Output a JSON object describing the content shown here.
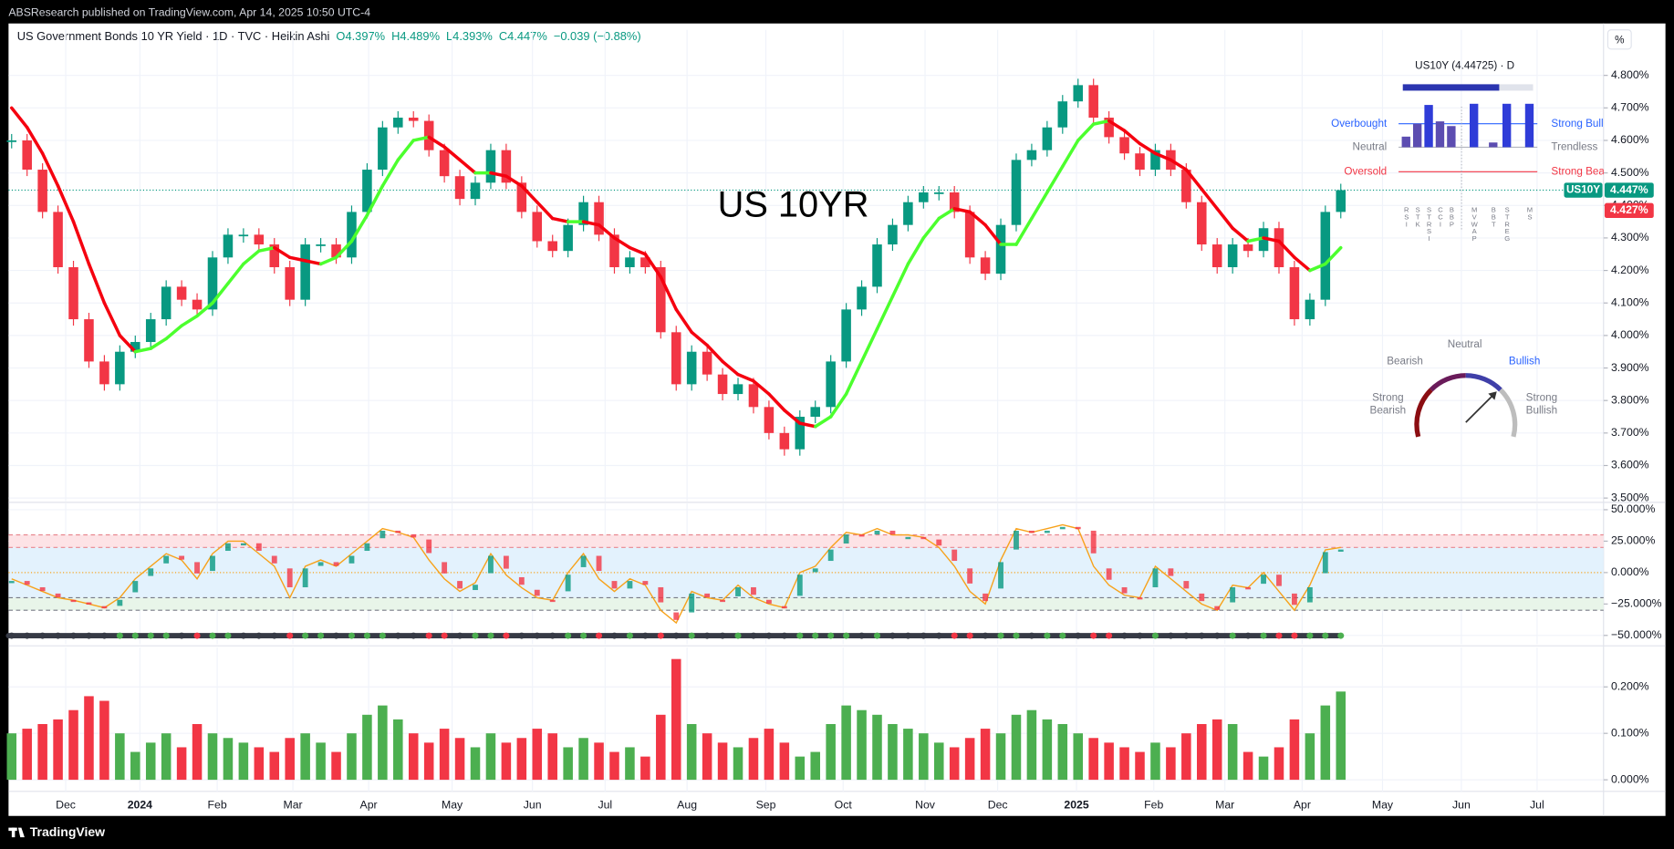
{
  "header": {
    "publisher": "ABSResearch published on TradingView.com, Apr 14, 2025 10:50 UTC-4"
  },
  "legend": {
    "symbol": "US Government Bonds 10 YR Yield · 1D · TVC · Heikin Ashi",
    "open": "O4.397%",
    "high": "H4.489%",
    "low": "L4.393%",
    "close": "C4.447%",
    "change": "−0.039 (−0.88%)",
    "unit": "%"
  },
  "chart_data": [
    {
      "type": "candlestick",
      "annotation": "US 10YR",
      "values": [
        4.6,
        4.51,
        4.38,
        4.21,
        4.05,
        3.92,
        3.85,
        3.95,
        3.98,
        4.05,
        4.15,
        4.11,
        4.08,
        4.24,
        4.31,
        4.31,
        4.28,
        4.21,
        4.11,
        4.28,
        4.28,
        4.24,
        4.38,
        4.51,
        4.64,
        4.67,
        4.66,
        4.57,
        4.49,
        4.42,
        4.47,
        4.57,
        4.47,
        4.38,
        4.29,
        4.26,
        4.34,
        4.41,
        4.31,
        4.21,
        4.24,
        4.21,
        4.01,
        3.85,
        3.95,
        3.88,
        3.82,
        3.85,
        3.78,
        3.7,
        3.65,
        3.75,
        3.78,
        3.92,
        4.08,
        4.15,
        4.28,
        4.34,
        4.41,
        4.44,
        4.44,
        4.38,
        4.24,
        4.19,
        4.34,
        4.54,
        4.57,
        4.64,
        4.72,
        4.77,
        4.67,
        4.61,
        4.56,
        4.51,
        4.57,
        4.51,
        4.41,
        4.28,
        4.21,
        4.28,
        4.26,
        4.33,
        4.21,
        4.05,
        4.11,
        4.38,
        4.447
      ],
      "ma": [
        4.7,
        4.64,
        4.56,
        4.46,
        4.35,
        4.22,
        4.1,
        4.0,
        3.95,
        3.96,
        3.99,
        4.03,
        4.06,
        4.1,
        4.16,
        4.22,
        4.26,
        4.27,
        4.24,
        4.23,
        4.22,
        4.24,
        4.29,
        4.37,
        4.46,
        4.54,
        4.6,
        4.61,
        4.58,
        4.54,
        4.5,
        4.5,
        4.49,
        4.46,
        4.41,
        4.36,
        4.35,
        4.35,
        4.34,
        4.3,
        4.27,
        4.25,
        4.18,
        4.08,
        4.01,
        3.97,
        3.92,
        3.88,
        3.86,
        3.82,
        3.77,
        3.73,
        3.72,
        3.75,
        3.82,
        3.92,
        4.02,
        4.12,
        4.22,
        4.3,
        4.36,
        4.39,
        4.38,
        4.34,
        4.28,
        4.28,
        4.36,
        4.44,
        4.52,
        4.6,
        4.65,
        4.66,
        4.63,
        4.59,
        4.56,
        4.54,
        4.51,
        4.45,
        4.39,
        4.33,
        4.29,
        4.3,
        4.29,
        4.24,
        4.2,
        4.22,
        4.27
      ],
      "up_color": "#089981",
      "down_color": "#f23645",
      "ma_up_color": "#4cff2e",
      "ma_down_color": "#f5000f",
      "xlim": [
        -0.2,
        103.0
      ],
      "ylim": [
        3.49,
        4.94
      ],
      "yticks": [
        {
          "value": 3.5,
          "label": "3.500%"
        },
        {
          "value": 3.6,
          "label": "3.600%"
        },
        {
          "value": 3.7,
          "label": "3.700%"
        },
        {
          "value": 3.8,
          "label": "3.800%"
        },
        {
          "value": 3.9,
          "label": "3.900%"
        },
        {
          "value": 4.0,
          "label": "4.000%"
        },
        {
          "value": 4.1,
          "label": "4.100%"
        },
        {
          "value": 4.2,
          "label": "4.200%"
        },
        {
          "value": 4.3,
          "label": "4.300%"
        },
        {
          "value": 4.4,
          "label": "4.400%"
        },
        {
          "value": 4.5,
          "label": "4.500%"
        },
        {
          "value": 4.6,
          "label": "4.600%"
        },
        {
          "value": 4.7,
          "label": "4.700%"
        },
        {
          "value": 4.8,
          "label": "4.800%"
        }
      ],
      "symbol": "US10Y",
      "tags": [
        {
          "value": 4.447,
          "label": "4.447%",
          "color": "#089981"
        },
        {
          "value": 4.427,
          "label": "4.427%",
          "color": "#f23645"
        }
      ],
      "grid": true
    },
    {
      "type": "line",
      "color": "#f7a21b",
      "values": [
        -5,
        -10,
        -15,
        -20,
        -22,
        -25,
        -28,
        -20,
        -5,
        5,
        15,
        10,
        -5,
        15,
        25,
        25,
        15,
        5,
        -20,
        5,
        10,
        5,
        15,
        25,
        35,
        32,
        28,
        10,
        -5,
        -15,
        -8,
        15,
        -2,
        -12,
        -20,
        -22,
        0,
        15,
        -5,
        -15,
        -5,
        -10,
        -30,
        -40,
        -15,
        -20,
        -22,
        -10,
        -20,
        -25,
        -28,
        0,
        5,
        20,
        32,
        30,
        35,
        30,
        30,
        28,
        20,
        5,
        -15,
        -25,
        10,
        35,
        32,
        35,
        38,
        35,
        5,
        -10,
        -18,
        -20,
        5,
        -5,
        -15,
        -25,
        -30,
        -10,
        -12,
        0,
        -15,
        -30,
        -10,
        18,
        20
      ],
      "levels": [
        30,
        20,
        -20,
        -30
      ],
      "band_colors": [
        "#fde3e6",
        "#e3f2fd",
        "#e8f5e9"
      ],
      "dot_colors": [
        "#4caf50",
        "#f23645",
        "#363a45"
      ],
      "xlim": [
        -0.2,
        103.0
      ],
      "ylim": [
        -57,
        55
      ],
      "yticks": [
        {
          "value": 50,
          "label": "50.000%"
        },
        {
          "value": 25,
          "label": "25.000%"
        },
        {
          "value": 0,
          "label": "0.000%"
        },
        {
          "value": -25,
          "label": "−25.000%"
        },
        {
          "value": -50,
          "label": "−50.000%"
        }
      ],
      "grid": true
    },
    {
      "type": "bar",
      "values": [
        0.1,
        0.11,
        0.12,
        0.13,
        0.15,
        0.18,
        0.17,
        0.1,
        0.06,
        0.08,
        0.1,
        0.07,
        0.12,
        0.1,
        0.09,
        0.08,
        0.07,
        0.06,
        0.09,
        0.1,
        0.08,
        0.06,
        0.1,
        0.14,
        0.16,
        0.13,
        0.1,
        0.08,
        0.11,
        0.09,
        0.07,
        0.1,
        0.08,
        0.09,
        0.11,
        0.1,
        0.07,
        0.09,
        0.08,
        0.06,
        0.07,
        0.05,
        0.14,
        0.26,
        0.12,
        0.1,
        0.08,
        0.07,
        0.09,
        0.11,
        0.08,
        0.05,
        0.06,
        0.12,
        0.16,
        0.15,
        0.14,
        0.12,
        0.11,
        0.1,
        0.08,
        0.07,
        0.09,
        0.11,
        0.1,
        0.14,
        0.15,
        0.13,
        0.12,
        0.1,
        0.09,
        0.08,
        0.07,
        0.06,
        0.08,
        0.07,
        0.1,
        0.12,
        0.13,
        0.12,
        0.06,
        0.05,
        0.07,
        0.13,
        0.1,
        0.16,
        0.19
      ],
      "up_color": "#4caf50",
      "down_color": "#f23645",
      "xlim": [
        -0.2,
        103.0
      ],
      "ylim": [
        -0.025,
        0.285
      ],
      "yticks": [
        {
          "value": 0,
          "label": "0.000%"
        },
        {
          "value": 0.1,
          "label": "0.100%"
        },
        {
          "value": 0.2,
          "label": "0.200%"
        }
      ],
      "xticks": [
        {
          "value": 3.5,
          "label": "Dec"
        },
        {
          "value": 8.3,
          "label": "2024"
        },
        {
          "value": 13.3,
          "label": "Feb"
        },
        {
          "value": 18.2,
          "label": "Mar"
        },
        {
          "value": 23.1,
          "label": "Apr"
        },
        {
          "value": 28.5,
          "label": "May"
        },
        {
          "value": 33.7,
          "label": "Jun"
        },
        {
          "value": 38.4,
          "label": "Jul"
        },
        {
          "value": 43.7,
          "label": "Aug"
        },
        {
          "value": 48.8,
          "label": "Sep"
        },
        {
          "value": 53.8,
          "label": "Oct"
        },
        {
          "value": 59.1,
          "label": "Nov"
        },
        {
          "value": 63.8,
          "label": "Dec"
        },
        {
          "value": 68.9,
          "label": "2025"
        },
        {
          "value": 73.9,
          "label": "Feb"
        },
        {
          "value": 78.5,
          "label": "Mar"
        },
        {
          "value": 83.5,
          "label": "Apr"
        },
        {
          "value": 88.7,
          "label": "May"
        },
        {
          "value": 93.8,
          "label": "Jun"
        },
        {
          "value": 98.7,
          "label": "Jul"
        }
      ],
      "grid": true
    }
  ],
  "panel": {
    "title": "US10Y (4.44725) · D",
    "progress": 74,
    "left": [
      "Overbought",
      "Neutral",
      "Oversold"
    ],
    "right": [
      "Strong Bull",
      "Trendless",
      "Strong Bea"
    ],
    "indicators": [
      {
        "name": "RSI",
        "value": 0.45
      },
      {
        "name": "STK",
        "value": 1.0
      },
      {
        "name": "STRSI",
        "value": 1.8
      },
      {
        "name": "CCI",
        "value": 1.1
      },
      {
        "name": "BBP",
        "value": 0.9
      },
      {
        "name": "MVWAP",
        "value": 1.85
      },
      {
        "name": "BBT",
        "value": 0.2
      },
      {
        "name": "STREG",
        "value": 1.85
      },
      {
        "name": "MS",
        "value": 1.85
      }
    ]
  },
  "gauge": {
    "neutral": "Neutral",
    "bearish": "Bearish",
    "bullish": "Bullish",
    "strong_bearish": [
      "Strong",
      "Bearish"
    ],
    "strong_bullish": [
      "Strong",
      "Bullish"
    ]
  },
  "footer": {
    "brand": "TradingView"
  }
}
